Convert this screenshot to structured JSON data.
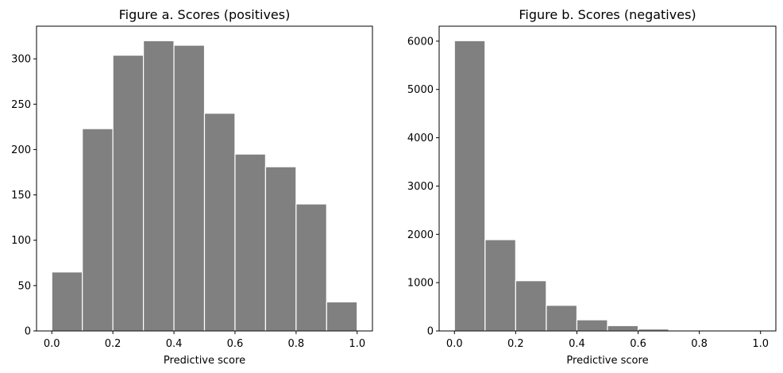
{
  "chart_data": [
    {
      "type": "bar",
      "title": "Figure a. Scores (positives)",
      "xlabel": "Predictive score",
      "ylabel": "",
      "bin_edges": [
        0.0,
        0.1,
        0.2,
        0.3,
        0.4,
        0.5,
        0.6,
        0.7,
        0.8,
        0.9,
        1.0
      ],
      "values": [
        65,
        223,
        304,
        320,
        315,
        240,
        195,
        181,
        140,
        32
      ],
      "xlim": [
        -0.05,
        1.05
      ],
      "ylim": [
        0,
        336
      ],
      "xticks": [
        0.0,
        0.2,
        0.4,
        0.6,
        0.8,
        1.0
      ],
      "xtick_labels": [
        "0.0",
        "0.2",
        "0.4",
        "0.6",
        "0.8",
        "1.0"
      ],
      "yticks": [
        0,
        50,
        100,
        150,
        200,
        250,
        300
      ],
      "ytick_labels": [
        "0",
        "50",
        "100",
        "150",
        "200",
        "250",
        "300"
      ],
      "grid": false,
      "color": "#808080",
      "edgecolor": "#ffffff"
    },
    {
      "type": "bar",
      "title": "Figure b. Scores (negatives)",
      "xlabel": "Predictive score",
      "ylabel": "",
      "bin_edges": [
        0.0,
        0.1,
        0.2,
        0.3,
        0.4,
        0.5,
        0.6,
        0.7,
        0.8,
        0.9,
        1.0
      ],
      "values": [
        6010,
        1890,
        1040,
        530,
        230,
        110,
        40,
        10,
        5,
        2
      ],
      "xlim": [
        -0.05,
        1.05
      ],
      "ylim": [
        0,
        6310
      ],
      "xticks": [
        0.0,
        0.2,
        0.4,
        0.6,
        0.8,
        1.0
      ],
      "xtick_labels": [
        "0.0",
        "0.2",
        "0.4",
        "0.6",
        "0.8",
        "1.0"
      ],
      "yticks": [
        0,
        1000,
        2000,
        3000,
        4000,
        5000,
        6000
      ],
      "ytick_labels": [
        "0",
        "1000",
        "2000",
        "3000",
        "4000",
        "5000",
        "6000"
      ],
      "grid": false,
      "color": "#808080",
      "edgecolor": "#ffffff"
    }
  ]
}
